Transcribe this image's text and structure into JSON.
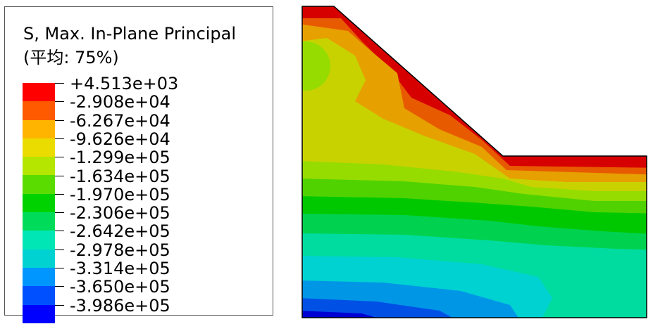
{
  "legend": {
    "title_line1": "S, Max. In-Plane Principal",
    "title_line2": "(平均: 75%)",
    "labels": [
      "+4.513e+03",
      "-2.908e+04",
      "-6.267e+04",
      "-9.626e+04",
      "-1.299e+05",
      "-1.634e+05",
      "-1.970e+05",
      "-2.306e+05",
      "-2.642e+05",
      "-2.978e+05",
      "-3.314e+05",
      "-3.650e+05",
      "-3.986e+05"
    ],
    "colors_top_to_bottom": [
      "#ff0000",
      "#ff5a00",
      "#ffb400",
      "#ebdc00",
      "#b4e600",
      "#5adc00",
      "#00d200",
      "#00dc5a",
      "#00e6b4",
      "#00d2d2",
      "#0096ff",
      "#0050ff",
      "#0000ff"
    ]
  },
  "plot": {
    "stress_bands_top_to_bottom": [
      "#d60000",
      "#e85a00",
      "#e6a000",
      "#c8d200",
      "#96dc00",
      "#50d200",
      "#00c800",
      "#00d250",
      "#00dca0",
      "#00d2d2",
      "#0096e6",
      "#0050e6",
      "#0000d2"
    ],
    "border_color": "#000000"
  }
}
